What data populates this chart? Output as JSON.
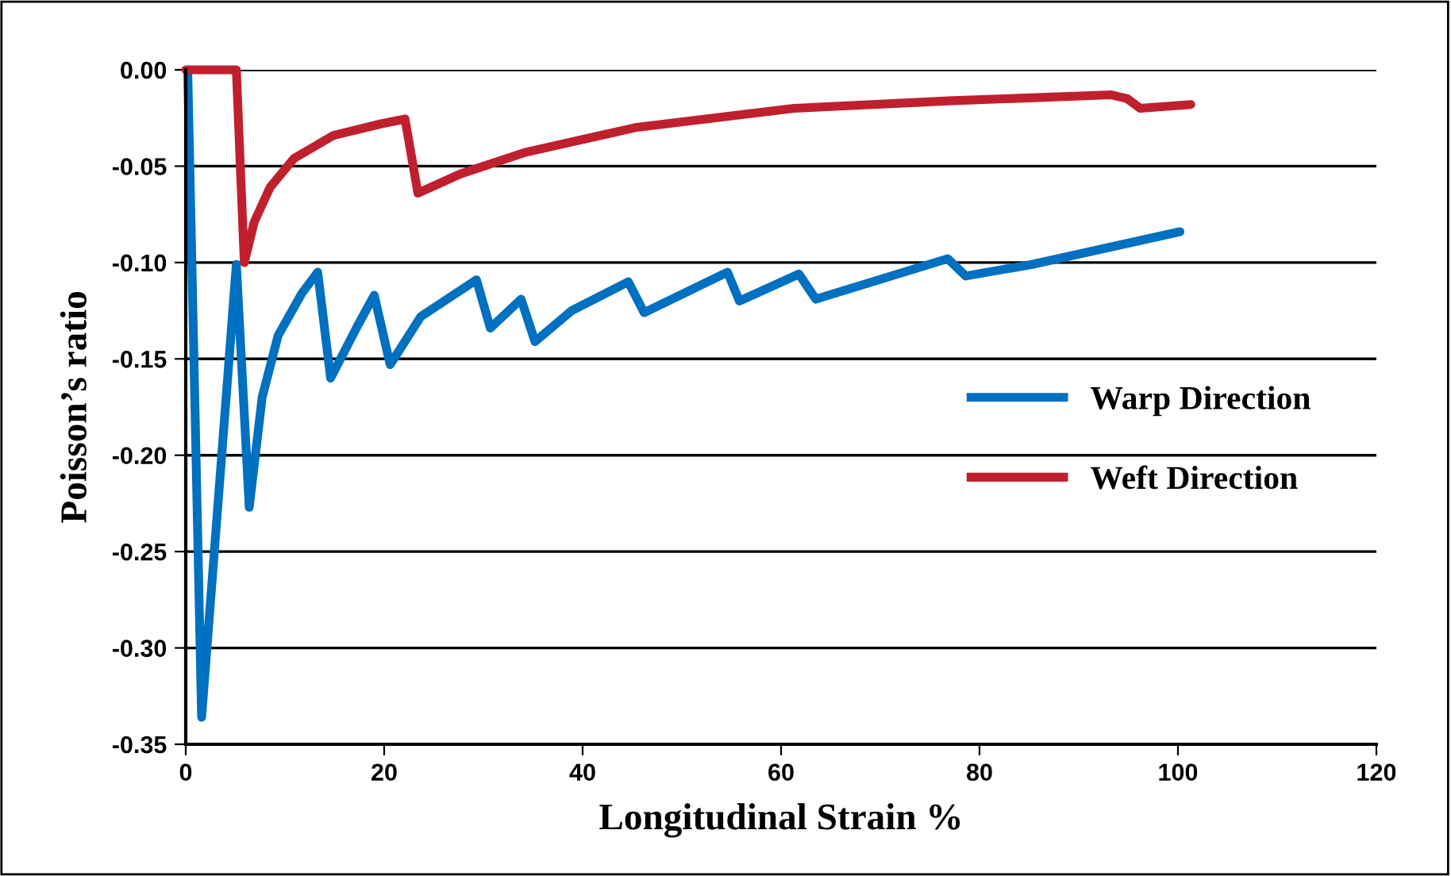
{
  "chart_data": {
    "type": "line",
    "xlabel": "Longitudinal Strain %",
    "ylabel": "Poisson’s ratio",
    "xlim": [
      0,
      120
    ],
    "xticks": [
      0,
      20,
      40,
      60,
      80,
      100,
      120
    ],
    "ylim": [
      -0.35,
      0
    ],
    "yticks": [
      {
        "value": -0.35,
        "label": "-0.35"
      },
      {
        "value": -0.3,
        "label": "-0.30"
      },
      {
        "value": -0.25,
        "label": "-0.25"
      },
      {
        "value": -0.2,
        "label": "-0.20"
      },
      {
        "value": -0.15,
        "label": "-0.15"
      },
      {
        "value": -0.1,
        "label": "-0.10"
      },
      {
        "value": -0.05,
        "label": "-0.05"
      },
      {
        "value": 0,
        "label": "0.00"
      }
    ],
    "grid": "y",
    "legend": "right",
    "marker": "none",
    "line_style": "solid",
    "series": [
      {
        "name": "Warp Direction",
        "color": "#0070c0",
        "x": [
          0.2,
          1.6,
          5.1,
          6.4,
          7.7,
          9.3,
          11.7,
          13.3,
          14.6,
          17.3,
          19.0,
          20.6,
          23.7,
          29.3,
          30.7,
          33.8,
          35.2,
          38.9,
          44.6,
          46.2,
          54.6,
          55.8,
          61.8,
          63.5,
          76.8,
          78.6,
          85.3,
          100.2
        ],
        "values": [
          0,
          -0.336,
          -0.101,
          -0.227,
          -0.17,
          -0.138,
          -0.116,
          -0.105,
          -0.16,
          -0.133,
          -0.117,
          -0.153,
          -0.128,
          -0.109,
          -0.134,
          -0.119,
          -0.141,
          -0.125,
          -0.11,
          -0.126,
          -0.105,
          -0.12,
          -0.106,
          -0.119,
          -0.098,
          -0.107,
          -0.101,
          -0.084
        ]
      },
      {
        "name": "Weft Direction",
        "color": "#c0202e",
        "x": [
          0,
          5.1,
          5.9,
          6.9,
          8.5,
          10.9,
          14.9,
          19.7,
          22.1,
          23.4,
          27.7,
          34.1,
          45.3,
          61.3,
          77.3,
          93.3,
          94.9,
          96.2,
          101.3
        ],
        "values": [
          0,
          0,
          -0.1,
          -0.079,
          -0.061,
          -0.046,
          -0.034,
          -0.028,
          -0.0255,
          -0.064,
          -0.054,
          -0.043,
          -0.03,
          -0.02,
          -0.016,
          -0.013,
          -0.015,
          -0.02,
          -0.018
        ]
      }
    ]
  }
}
